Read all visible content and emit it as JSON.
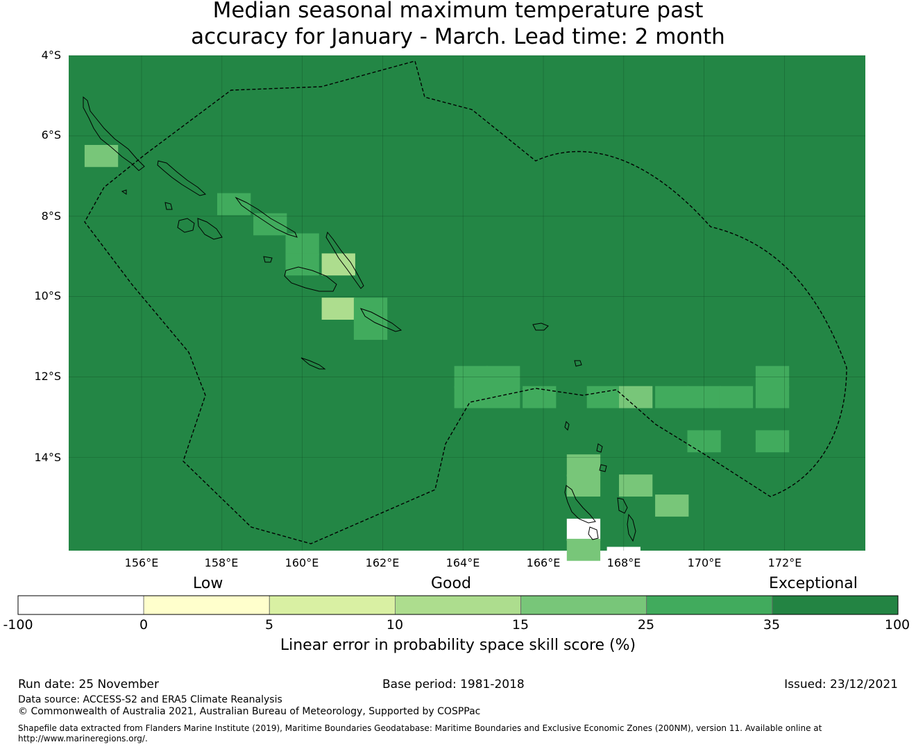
{
  "title": {
    "line1": "Median seasonal maximum temperature past",
    "line2": "accuracy for January - March. Lead time: 2 month"
  },
  "map": {
    "lon_labels": [
      "156°E",
      "158°E",
      "160°E",
      "162°E",
      "164°E",
      "166°E",
      "168°E",
      "170°E",
      "172°E"
    ],
    "lat_labels": [
      "4°S",
      "6°S",
      "8°S",
      "10°S",
      "12°S",
      "14°S"
    ],
    "background_color": "#238645"
  },
  "grid_cells": [
    {
      "lon": 155.0,
      "lat": -6.5,
      "score": 20
    },
    {
      "lon": 158.3,
      "lat": -7.7,
      "score": 30
    },
    {
      "lon": 159.2,
      "lat": -8.2,
      "score": 30
    },
    {
      "lon": 160.0,
      "lat": -8.7,
      "score": 30
    },
    {
      "lon": 160.0,
      "lat": -9.2,
      "score": 30
    },
    {
      "lon": 160.9,
      "lat": -9.2,
      "score": 13
    },
    {
      "lon": 160.9,
      "lat": -10.3,
      "score": 12
    },
    {
      "lon": 161.7,
      "lat": -10.3,
      "score": 30
    },
    {
      "lon": 161.7,
      "lat": -10.8,
      "score": 30
    },
    {
      "lon": 164.2,
      "lat": -12.0,
      "score": 30
    },
    {
      "lon": 165.0,
      "lat": -12.0,
      "score": 30
    },
    {
      "lon": 164.2,
      "lat": -12.5,
      "score": 30
    },
    {
      "lon": 165.0,
      "lat": -12.5,
      "score": 30
    },
    {
      "lon": 165.9,
      "lat": -12.5,
      "score": 30
    },
    {
      "lon": 167.5,
      "lat": -12.5,
      "score": 30
    },
    {
      "lon": 168.3,
      "lat": -12.5,
      "score": 20
    },
    {
      "lon": 169.2,
      "lat": -12.5,
      "score": 30
    },
    {
      "lon": 170.0,
      "lat": -12.5,
      "score": 30
    },
    {
      "lon": 170.8,
      "lat": -12.5,
      "score": 30
    },
    {
      "lon": 171.7,
      "lat": -12.0,
      "score": 30
    },
    {
      "lon": 171.7,
      "lat": -12.5,
      "score": 30
    },
    {
      "lon": 170.0,
      "lat": -13.6,
      "score": 30
    },
    {
      "lon": 171.7,
      "lat": -13.6,
      "score": 30
    },
    {
      "lon": 167.0,
      "lat": -14.2,
      "score": 20
    },
    {
      "lon": 167.0,
      "lat": -14.7,
      "score": 20
    },
    {
      "lon": 168.3,
      "lat": -14.7,
      "score": 20
    },
    {
      "lon": 169.2,
      "lat": -15.2,
      "score": 20
    },
    {
      "lon": 167.0,
      "lat": -15.8,
      "score": -50
    },
    {
      "lon": 167.0,
      "lat": -16.3,
      "score": 20
    },
    {
      "lon": 168.0,
      "lat": -16.5,
      "score": -50
    }
  ],
  "colorbar": {
    "category_labels": [
      "Low",
      "Good",
      "Exceptional"
    ],
    "tick_labels": [
      "-100",
      "0",
      "5",
      "10",
      "15",
      "25",
      "35",
      "100"
    ],
    "bins": [
      {
        "from": -100,
        "to": 0,
        "color": "#ffffff"
      },
      {
        "from": 0,
        "to": 5,
        "color": "#ffffcc"
      },
      {
        "from": 5,
        "to": 10,
        "color": "#d9f0a3"
      },
      {
        "from": 10,
        "to": 15,
        "color": "#addd8e"
      },
      {
        "from": 15,
        "to": 25,
        "color": "#78c679"
      },
      {
        "from": 25,
        "to": 35,
        "color": "#41ab5d"
      },
      {
        "from": 35,
        "to": 100,
        "color": "#238443"
      }
    ],
    "title": "Linear error in probability space skill score (%)"
  },
  "footer": {
    "run_date": "Run date: 25 November",
    "base_period": "Base period: 1981-2018",
    "issued": "Issued: 23/12/2021",
    "data_source": "Data source: ACCESS-S2 and ERA5 Climate Reanalysis",
    "copyright": "© Commonwealth of Australia 2021, Australian Bureau of Meteorology, Supported by COSPPac",
    "shapefile_line1": "Shapefile data extracted from Flanders Marine Institute (2019), Maritime Boundaries Geodatabase: Maritime Boundaries and Exclusive Economic Zones (200NM), version 11. Available online at",
    "shapefile_line2": "http://www.marineregions.org/."
  }
}
